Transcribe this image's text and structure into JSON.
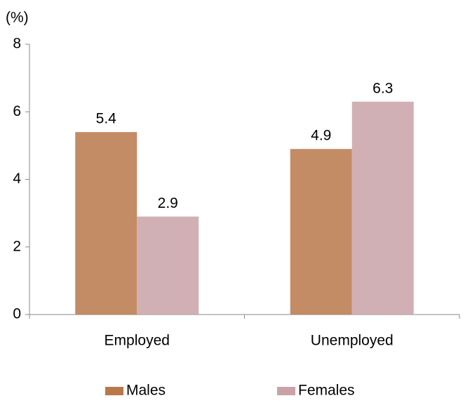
{
  "chart_data": {
    "type": "bar",
    "y_label": "(%)",
    "categories": [
      "Employed",
      "Unemployed"
    ],
    "series": [
      {
        "name": "Males",
        "color": "#b8784a",
        "values": [
          5.4,
          4.9
        ]
      },
      {
        "name": "Females",
        "color": "#c9a2a8",
        "values": [
          2.9,
          6.3
        ]
      }
    ],
    "ylim": [
      0,
      8
    ],
    "yticks": [
      0,
      2,
      4,
      6,
      8
    ],
    "grid": false,
    "legend": "bottom"
  }
}
